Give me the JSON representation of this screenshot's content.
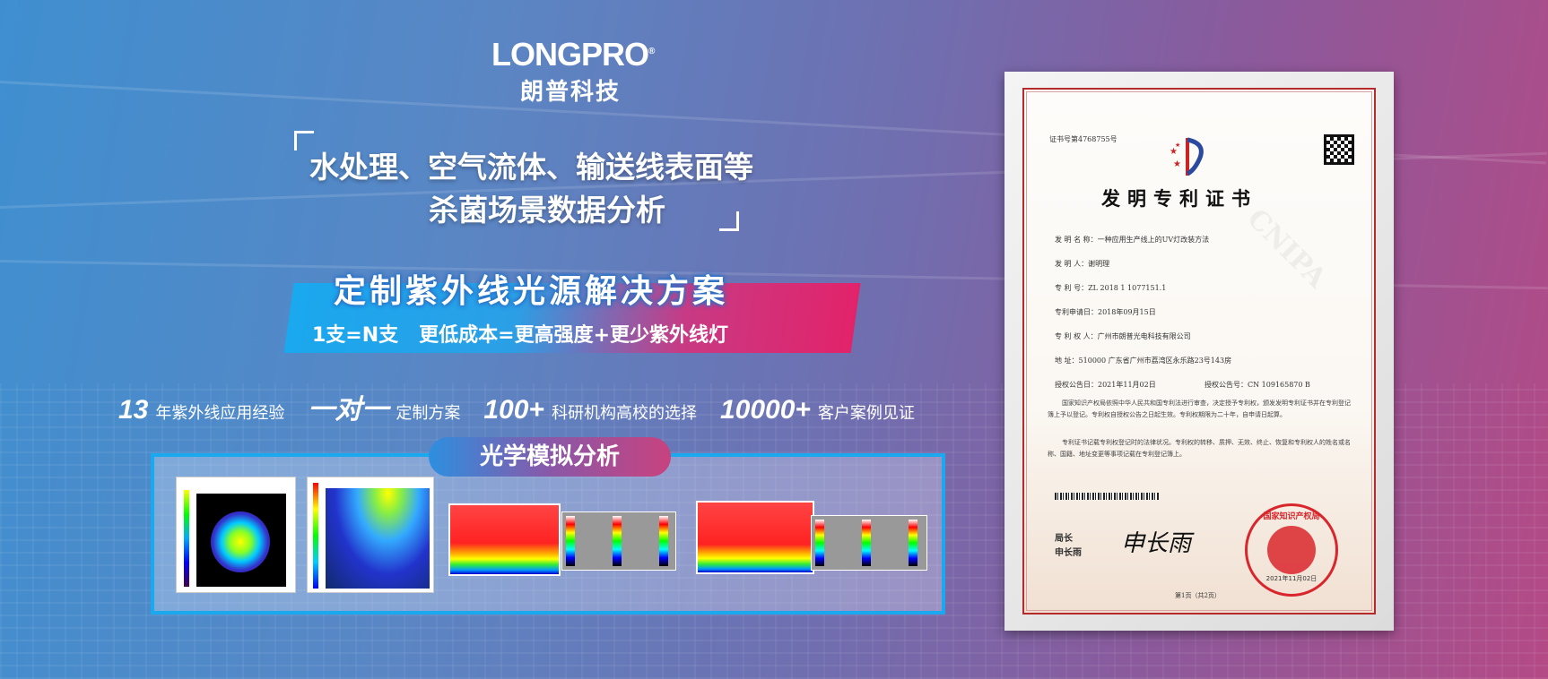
{
  "brand": {
    "logo_text": "LONGPRO",
    "registered_mark": "®",
    "name_cn": "朗普科技"
  },
  "headline": {
    "line1": "水处理、空气流体、输送线表面等",
    "line2": "杀菌场景数据分析"
  },
  "solution": {
    "title": "定制紫外线光源解决方案",
    "subtitle": "1支=N支   更低成本=更高强度+更少紫外线灯"
  },
  "stats": [
    {
      "big": "13",
      "text": "年紫外线应用经验"
    },
    {
      "big": "一对一",
      "text": "定制方案"
    },
    {
      "big": "100+",
      "text": "科研机构高校的选择"
    },
    {
      "big": "10000+",
      "text": "客户案例见证"
    }
  ],
  "simulation": {
    "label": "光学模拟分析"
  },
  "certificate": {
    "number": "证书号第4768755号",
    "title": "发明专利证书",
    "fields": [
      {
        "label": "发 明 名 称：",
        "value": "一种应用生产线上的UV灯改装方法"
      },
      {
        "label": "发  明  人：",
        "value": "谢明理"
      },
      {
        "label": "专  利  号：",
        "value": "ZL 2018 1 1077151.1"
      },
      {
        "label": "专利申请日：",
        "value": "2018年09月15日"
      },
      {
        "label": "专 利 权 人：",
        "value": "广州市朗普光电科技有限公司"
      },
      {
        "label": "地      址：",
        "value": "510000 广东省广州市荔湾区永乐路23号143房"
      }
    ],
    "grant_date_label": "授权公告日：",
    "grant_date": "2021年11月02日",
    "grant_no_label": "授权公告号：",
    "grant_no": "CN 109165870 B",
    "para1": "国家知识产权局依照中华人民共和国专利法进行审查，决定授予专利权，颁发发明专利证书并在专利登记簿上予以登记。专利权自授权公告之日起生效。专利权期限为二十年，自申请日起算。",
    "para2": "专利证书记载专利权登记时的法律状况。专利权的转移、质押、无效、终止、恢复和专利权人的姓名或名称、国籍、地址变更等事项记载在专利登记簿上。",
    "signer_title": "局长",
    "signer_name": "申长雨",
    "signature": "申长雨",
    "seal_text": "国家知识产权局",
    "seal_date": "2021年11月02日",
    "page": "第1页（共2页）",
    "watermark": "CNIPA"
  },
  "colors": {
    "accent_blue": "#1aa8ee",
    "accent_pink": "#e2236a",
    "seal_red": "#d9262c"
  }
}
